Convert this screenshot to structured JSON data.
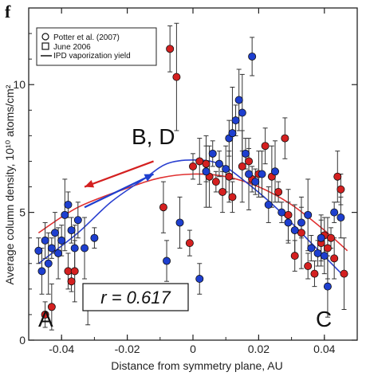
{
  "chart_data": {
    "type": "scatter",
    "panel_label": "f",
    "xlabel": "Distance from symmetry plane, AU",
    "ylabel": "Average column density, 10¹⁰ atoms/cm²",
    "xlim": [
      -0.05,
      0.05
    ],
    "ylim": [
      0,
      13
    ],
    "xticks": [
      -0.04,
      -0.02,
      0,
      0.02,
      0.04
    ],
    "xtick_labels": [
      "-0.04",
      "-0.02",
      "0",
      "0.02",
      "0.04"
    ],
    "yticks": [
      0,
      5,
      10
    ],
    "ytick_labels": [
      "0",
      "5",
      "10"
    ],
    "grid": false,
    "legend_position": "top-left",
    "legend": [
      {
        "marker": "circle",
        "label": "Potter et al. (2007)"
      },
      {
        "marker": "square",
        "label": "June 2006"
      },
      {
        "marker": "line",
        "label": "IPD vaporization yield"
      }
    ],
    "annotations": {
      "bd": "B, D",
      "a": "A",
      "c": "C",
      "correlation": "r = 0.617"
    },
    "colors": {
      "red": "#d42020",
      "blue": "#1e3fcf",
      "red_curve": "#e03030",
      "blue_curve": "#2a40d0"
    },
    "series": [
      {
        "color": "red",
        "points": [
          {
            "x": -0.045,
            "y": 1.0
          },
          {
            "x": -0.043,
            "y": 1.3
          },
          {
            "x": -0.038,
            "y": 2.7
          },
          {
            "x": -0.036,
            "y": 2.7
          },
          {
            "x": -0.037,
            "y": 2.3
          },
          {
            "x": -0.032,
            "y": 1.4
          },
          {
            "x": -0.009,
            "y": 5.2
          },
          {
            "x": -0.007,
            "y": 11.4
          },
          {
            "x": -0.005,
            "y": 10.3
          },
          {
            "x": -0.001,
            "y": 3.8
          },
          {
            "x": 0.0,
            "y": 6.8
          },
          {
            "x": 0.002,
            "y": 7.0
          },
          {
            "x": 0.004,
            "y": 6.9
          },
          {
            "x": 0.005,
            "y": 6.4
          },
          {
            "x": 0.007,
            "y": 6.2
          },
          {
            "x": 0.009,
            "y": 5.8
          },
          {
            "x": 0.011,
            "y": 6.4
          },
          {
            "x": 0.012,
            "y": 5.6
          },
          {
            "x": 0.015,
            "y": 6.8
          },
          {
            "x": 0.017,
            "y": 7.0
          },
          {
            "x": 0.018,
            "y": 6.3
          },
          {
            "x": 0.02,
            "y": 6.5
          },
          {
            "x": 0.022,
            "y": 7.6
          },
          {
            "x": 0.024,
            "y": 6.4
          },
          {
            "x": 0.026,
            "y": 5.8
          },
          {
            "x": 0.028,
            "y": 7.9
          },
          {
            "x": 0.029,
            "y": 4.9
          },
          {
            "x": 0.031,
            "y": 3.3
          },
          {
            "x": 0.033,
            "y": 4.2
          },
          {
            "x": 0.035,
            "y": 2.9
          },
          {
            "x": 0.037,
            "y": 2.6
          },
          {
            "x": 0.039,
            "y": 3.8
          },
          {
            "x": 0.04,
            "y": 4.1
          },
          {
            "x": 0.041,
            "y": 3.6
          },
          {
            "x": 0.042,
            "y": 4.0
          },
          {
            "x": 0.043,
            "y": 3.2
          },
          {
            "x": 0.044,
            "y": 6.4
          },
          {
            "x": 0.045,
            "y": 5.9
          },
          {
            "x": 0.046,
            "y": 2.6
          }
        ]
      },
      {
        "color": "blue",
        "points": [
          {
            "x": -0.047,
            "y": 3.5
          },
          {
            "x": -0.046,
            "y": 2.7
          },
          {
            "x": -0.045,
            "y": 3.9
          },
          {
            "x": -0.044,
            "y": 3.0
          },
          {
            "x": -0.043,
            "y": 3.6
          },
          {
            "x": -0.042,
            "y": 4.2
          },
          {
            "x": -0.041,
            "y": 3.4
          },
          {
            "x": -0.04,
            "y": 3.9
          },
          {
            "x": -0.039,
            "y": 4.9
          },
          {
            "x": -0.038,
            "y": 5.3
          },
          {
            "x": -0.037,
            "y": 4.3
          },
          {
            "x": -0.036,
            "y": 3.6
          },
          {
            "x": -0.035,
            "y": 4.7
          },
          {
            "x": -0.033,
            "y": 3.6
          },
          {
            "x": -0.03,
            "y": 4.0
          },
          {
            "x": -0.008,
            "y": 3.1
          },
          {
            "x": -0.004,
            "y": 4.6
          },
          {
            "x": 0.002,
            "y": 2.4
          },
          {
            "x": 0.004,
            "y": 6.6
          },
          {
            "x": 0.006,
            "y": 7.3
          },
          {
            "x": 0.008,
            "y": 6.9
          },
          {
            "x": 0.01,
            "y": 6.7
          },
          {
            "x": 0.011,
            "y": 7.9
          },
          {
            "x": 0.012,
            "y": 8.1
          },
          {
            "x": 0.013,
            "y": 8.6
          },
          {
            "x": 0.014,
            "y": 9.4
          },
          {
            "x": 0.015,
            "y": 8.9
          },
          {
            "x": 0.016,
            "y": 7.3
          },
          {
            "x": 0.017,
            "y": 6.5
          },
          {
            "x": 0.018,
            "y": 11.1
          },
          {
            "x": 0.019,
            "y": 6.2
          },
          {
            "x": 0.021,
            "y": 6.5
          },
          {
            "x": 0.023,
            "y": 5.3
          },
          {
            "x": 0.025,
            "y": 6.6
          },
          {
            "x": 0.027,
            "y": 5.0
          },
          {
            "x": 0.029,
            "y": 4.6
          },
          {
            "x": 0.031,
            "y": 4.3
          },
          {
            "x": 0.033,
            "y": 4.6
          },
          {
            "x": 0.035,
            "y": 4.9
          },
          {
            "x": 0.036,
            "y": 3.6
          },
          {
            "x": 0.038,
            "y": 3.4
          },
          {
            "x": 0.039,
            "y": 4.0
          },
          {
            "x": 0.04,
            "y": 3.3
          },
          {
            "x": 0.041,
            "y": 2.1
          },
          {
            "x": 0.043,
            "y": 5.0
          },
          {
            "x": 0.045,
            "y": 4.8
          }
        ]
      }
    ],
    "curves": [
      {
        "color": "red",
        "points": [
          [
            -0.047,
            4.2
          ],
          [
            -0.035,
            5.2
          ],
          [
            -0.02,
            5.95
          ],
          [
            -0.01,
            6.35
          ],
          [
            0.0,
            6.5
          ],
          [
            0.01,
            6.4
          ],
          [
            0.02,
            6.0
          ],
          [
            0.03,
            5.3
          ],
          [
            0.04,
            4.3
          ],
          [
            0.047,
            3.5
          ]
        ]
      },
      {
        "color": "blue",
        "points": [
          [
            -0.047,
            3.0
          ],
          [
            -0.035,
            4.2
          ],
          [
            -0.025,
            5.4
          ],
          [
            -0.015,
            6.3
          ],
          [
            -0.008,
            6.9
          ],
          [
            0.0,
            7.05
          ],
          [
            0.008,
            6.9
          ],
          [
            0.016,
            6.2
          ],
          [
            0.026,
            5.1
          ],
          [
            0.036,
            3.8
          ],
          [
            0.046,
            2.5
          ]
        ]
      }
    ],
    "arrows": [
      {
        "color": "red",
        "from": [
          -0.012,
          7.0
        ],
        "to": [
          -0.033,
          6.0
        ]
      },
      {
        "color": "blue",
        "from": [
          -0.033,
          5.2
        ],
        "to": [
          -0.012,
          6.5
        ]
      }
    ]
  }
}
